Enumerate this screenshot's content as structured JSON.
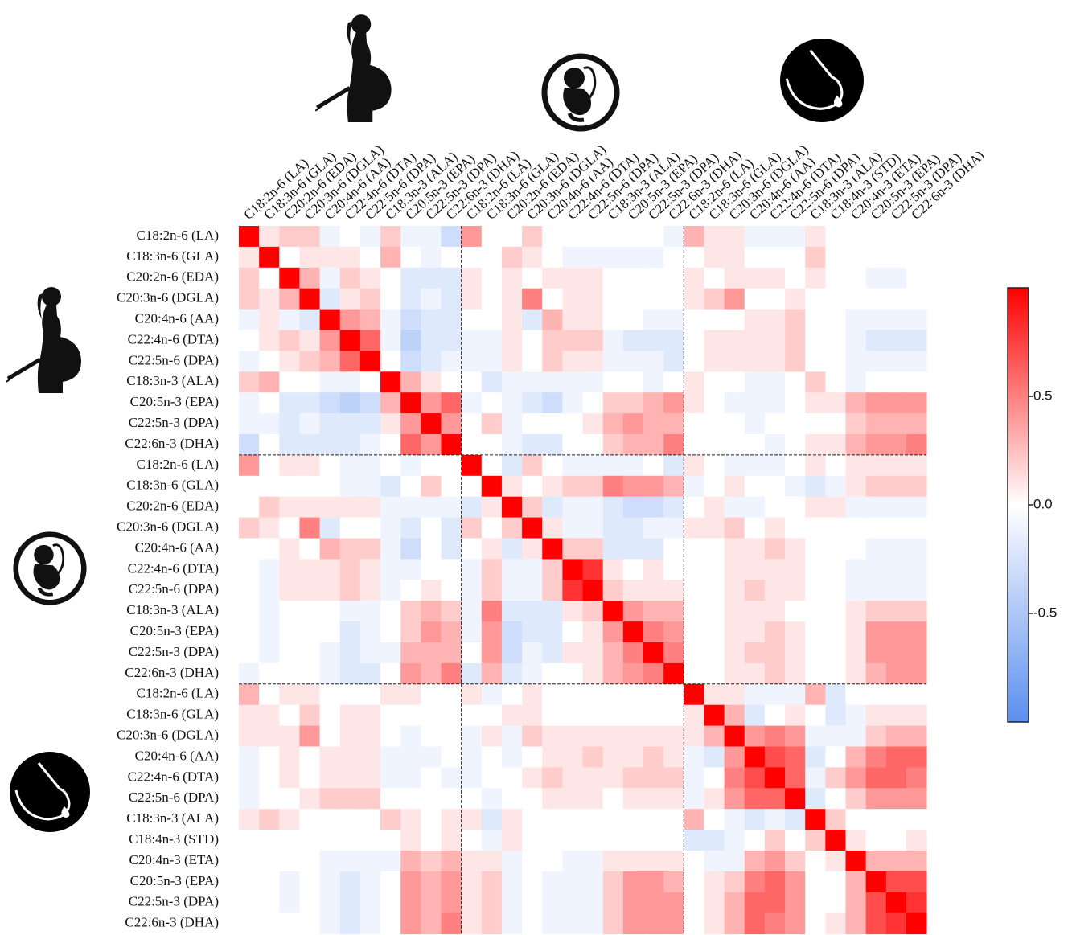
{
  "chart_data": {
    "type": "heatmap",
    "x_labels": [
      "C18:2n-6 (LA)",
      "C18:3n-6 (GLA)",
      "C20:2n-6 (EDA)",
      "C20:3n-6 (DGLA)",
      "C20:4n-6 (AA)",
      "C22:4n-6 (DTA)",
      "C22:5n-6 (DPA)",
      "C18:3n-3 (ALA)",
      "C20:5n-3 (EPA)",
      "C22:5n-3 (DPA)",
      "C22:6n-3 (DHA)",
      "C18:2n-6 (LA)",
      "C18:3n-6 (GLA)",
      "C20:2n-6 (EDA)",
      "C20:3n-6 (DGLA)",
      "C20:4n-6 (AA)",
      "C22:4n-6 (DTA)",
      "C22:5n-6 (DPA)",
      "C18:3n-3 (ALA)",
      "C20:5n-3 (EPA)",
      "C22:5n-3 (DPA)",
      "C22:6n-3 (DHA)",
      "C18:2n-6 (LA)",
      "C18:3n-6 (GLA)",
      "C20:3n-6 (DGLA)",
      "C20:4n-6 (AA)",
      "C22:4n-6 (DTA)",
      "C22:5n-6 (DPA)",
      "C18:3n-3 (ALA)",
      "C18:4n-3 (STD)",
      "C20:4n-3 (ETA)",
      "C20:5n-3 (EPA)",
      "C22:5n-3 (DPA)",
      "C22:6n-3 (DHA)"
    ],
    "y_labels": [
      "C18:2n-6 (LA)",
      "C18:3n-6 (GLA)",
      "C20:2n-6 (EDA)",
      "C20:3n-6 (DGLA)",
      "C20:4n-6 (AA)",
      "C22:4n-6 (DTA)",
      "C22:5n-6 (DPA)",
      "C18:3n-3 (ALA)",
      "C20:5n-3 (EPA)",
      "C22:5n-3 (DPA)",
      "C22:6n-3 (DHA)",
      "C18:2n-6 (LA)",
      "C18:3n-6 (GLA)",
      "C20:2n-6 (EDA)",
      "C20:3n-6 (DGLA)",
      "C20:4n-6 (AA)",
      "C22:4n-6 (DTA)",
      "C22:5n-6 (DPA)",
      "C18:3n-3 (ALA)",
      "C20:5n-3 (EPA)",
      "C22:5n-3 (DPA)",
      "C22:6n-3 (DHA)",
      "C18:2n-6 (LA)",
      "C18:3n-6 (GLA)",
      "C20:3n-6 (DGLA)",
      "C20:4n-6 (AA)",
      "C22:4n-6 (DTA)",
      "C22:5n-6 (DPA)",
      "C18:3n-3 (ALA)",
      "C18:4n-3 (STD)",
      "C20:4n-3 (ETA)",
      "C20:5n-3 (EPA)",
      "C22:5n-3 (DPA)",
      "C22:6n-3 (DHA)"
    ],
    "z": [
      [
        1,
        0.1,
        0.2,
        0.2,
        -0.1,
        0,
        -0.1,
        0.2,
        -0.1,
        -0.1,
        -0.3,
        0.4,
        0,
        0,
        0.2,
        0,
        0,
        0,
        0,
        0,
        0,
        -0.1,
        0.3,
        0.1,
        0.1,
        -0.1,
        -0.1,
        -0.1,
        0.1,
        0,
        0,
        0,
        0,
        0
      ],
      [
        0.1,
        1,
        0,
        0.1,
        0.1,
        0.1,
        0,
        0.3,
        0,
        -0.1,
        0,
        0,
        0,
        0.2,
        0.1,
        0,
        -0.1,
        -0.1,
        -0.1,
        -0.1,
        -0.1,
        0,
        0,
        0.1,
        0.1,
        0,
        0,
        0,
        0.2,
        0,
        0,
        0,
        0,
        0
      ],
      [
        0.2,
        0,
        1,
        0.3,
        -0.1,
        0.2,
        0.1,
        0,
        -0.2,
        -0.2,
        -0.2,
        0.1,
        0,
        0.1,
        0,
        0.1,
        0.1,
        0.1,
        0,
        0,
        0,
        0,
        0.1,
        0,
        0.1,
        0.1,
        0.1,
        0,
        0.1,
        0,
        0,
        -0.1,
        -0.1,
        0
      ],
      [
        0.2,
        0.1,
        0.3,
        1,
        -0.2,
        0.1,
        0.2,
        0,
        -0.2,
        -0.1,
        -0.2,
        0.1,
        0,
        0.1,
        0.5,
        0,
        0.1,
        0.1,
        0,
        0,
        0,
        0,
        0.1,
        0.2,
        0.4,
        0,
        0,
        0.1,
        0,
        0,
        0,
        0,
        0,
        0
      ],
      [
        -0.1,
        0.1,
        -0.1,
        -0.2,
        1,
        0.4,
        0.3,
        -0.1,
        -0.3,
        -0.2,
        -0.2,
        0,
        0,
        0.1,
        -0.2,
        0.3,
        0.1,
        0.1,
        0,
        0,
        -0.1,
        -0.1,
        0,
        0,
        0,
        0.1,
        0.1,
        0.2,
        0,
        0,
        -0.1,
        -0.1,
        -0.1,
        -0.1
      ],
      [
        0,
        0.1,
        0.2,
        0.1,
        0.4,
        1,
        0.6,
        -0.1,
        -0.4,
        -0.2,
        -0.2,
        -0.1,
        -0.1,
        0.1,
        0,
        0.2,
        0.2,
        0.2,
        -0.1,
        -0.2,
        -0.2,
        -0.2,
        0,
        0.1,
        0.1,
        0.1,
        0.1,
        0.2,
        0,
        0,
        -0.1,
        -0.2,
        -0.2,
        -0.2
      ],
      [
        -0.1,
        0,
        0.1,
        0.2,
        0.3,
        0.6,
        1,
        0,
        -0.3,
        -0.2,
        -0.1,
        -0.1,
        -0.1,
        0.1,
        0,
        0.2,
        0.1,
        0.1,
        -0.1,
        -0.1,
        -0.1,
        -0.2,
        0,
        0.1,
        0.1,
        0.1,
        0.1,
        0.2,
        0,
        0,
        -0.1,
        -0.1,
        -0.1,
        -0.1
      ],
      [
        0.2,
        0.3,
        0,
        0,
        -0.1,
        -0.1,
        0,
        1,
        0.3,
        0.1,
        0,
        0,
        -0.2,
        -0.1,
        -0.1,
        -0.1,
        -0.1,
        -0.1,
        0,
        0,
        -0.1,
        0,
        0.1,
        0,
        0,
        -0.1,
        -0.1,
        0,
        0.2,
        0,
        -0.1,
        0,
        0,
        0
      ],
      [
        -0.1,
        0,
        -0.2,
        -0.2,
        -0.3,
        -0.4,
        -0.3,
        0.3,
        1,
        0.4,
        0.6,
        -0.1,
        0,
        -0.1,
        -0.2,
        -0.3,
        -0.1,
        0,
        0.2,
        0.2,
        0.3,
        0.4,
        0.1,
        0,
        -0.1,
        -0.1,
        -0.1,
        0,
        0.1,
        0.1,
        0.3,
        0.4,
        0.4,
        0.4
      ],
      [
        -0.1,
        -0.1,
        -0.2,
        -0.1,
        -0.2,
        -0.2,
        -0.2,
        0.1,
        0.4,
        1,
        0.4,
        0,
        0.2,
        -0.1,
        0,
        0,
        0,
        0.1,
        0.3,
        0.4,
        0.3,
        0.3,
        0,
        0,
        0,
        -0.1,
        0,
        0,
        0,
        0,
        0.2,
        0.3,
        0.3,
        0.3
      ],
      [
        -0.3,
        0,
        -0.2,
        -0.2,
        -0.2,
        -0.2,
        -0.1,
        0,
        0.6,
        0.4,
        1,
        0,
        0,
        -0.1,
        -0.2,
        -0.2,
        0,
        0,
        0.2,
        0.3,
        0.3,
        0.5,
        0,
        0,
        0,
        0,
        -0.1,
        0,
        0.1,
        0.1,
        0.3,
        0.4,
        0.4,
        0.5
      ],
      [
        0.4,
        0,
        0.1,
        0.1,
        0,
        -0.1,
        -0.1,
        0,
        -0.1,
        0,
        0,
        1,
        0,
        -0.2,
        0.2,
        0,
        -0.1,
        -0.1,
        -0.1,
        -0.1,
        0,
        -0.2,
        0.1,
        0,
        -0.1,
        -0.1,
        -0.1,
        0,
        0.1,
        0,
        0.1,
        0.1,
        0.1,
        0.1
      ],
      [
        0,
        0,
        0,
        0,
        0,
        -0.1,
        -0.1,
        -0.2,
        0,
        0.2,
        0,
        0,
        1,
        0.1,
        0,
        0.1,
        0.2,
        0.2,
        0.5,
        0.4,
        0.4,
        0.3,
        -0.1,
        0,
        0.1,
        0,
        0,
        -0.1,
        -0.2,
        -0.1,
        0.1,
        0.2,
        0.2,
        0.2
      ],
      [
        0,
        0.2,
        0.1,
        0.1,
        0.1,
        0.1,
        0.1,
        -0.1,
        -0.1,
        -0.1,
        -0.1,
        -0.2,
        0.1,
        1,
        0.2,
        -0.2,
        -0.1,
        -0.1,
        -0.2,
        -0.3,
        -0.3,
        -0.2,
        0,
        0.1,
        -0.1,
        -0.1,
        0,
        0,
        0.1,
        0.1,
        -0.1,
        -0.1,
        -0.1,
        -0.1
      ],
      [
        0.2,
        0.1,
        0,
        0.5,
        -0.2,
        0,
        0,
        -0.1,
        -0.2,
        0,
        -0.2,
        0.2,
        0,
        0.2,
        1,
        0.1,
        -0.1,
        -0.1,
        -0.2,
        -0.2,
        -0.1,
        -0.1,
        0.1,
        0.1,
        0.2,
        0,
        0.1,
        0,
        0,
        0,
        0,
        0,
        0,
        0
      ],
      [
        0,
        0,
        0.1,
        0,
        0.3,
        0.2,
        0.2,
        -0.1,
        -0.3,
        0,
        -0.2,
        0,
        0.1,
        -0.2,
        0.1,
        1,
        0.2,
        0.2,
        -0.2,
        -0.2,
        -0.2,
        0,
        0,
        0,
        0.1,
        0.1,
        0.2,
        0.1,
        0,
        0,
        0,
        -0.1,
        -0.1,
        -0.1
      ],
      [
        0,
        -0.1,
        0.1,
        0.1,
        0.1,
        0.2,
        0.1,
        -0.1,
        -0.1,
        0,
        0,
        -0.1,
        0.2,
        -0.1,
        -0.1,
        0.2,
        1,
        0.8,
        0.1,
        0,
        0.1,
        0,
        0,
        0,
        0.1,
        0.1,
        0.1,
        0.1,
        0,
        0,
        -0.1,
        -0.1,
        -0.1,
        -0.1
      ],
      [
        0,
        -0.1,
        0.1,
        0.1,
        0.1,
        0.2,
        0.1,
        -0.1,
        0,
        0.1,
        0,
        -0.1,
        0.2,
        -0.1,
        -0.1,
        0.2,
        0.8,
        1,
        0.2,
        0.1,
        0.1,
        0.1,
        0,
        0,
        0.1,
        0.2,
        0.1,
        0.1,
        0,
        0,
        -0.1,
        -0.1,
        -0.1,
        -0.1
      ],
      [
        0,
        -0.1,
        0,
        0,
        0,
        -0.1,
        -0.1,
        0,
        0.2,
        0.3,
        0.2,
        -0.1,
        0.5,
        -0.2,
        -0.2,
        -0.2,
        0.1,
        0.2,
        1,
        0.4,
        0.3,
        0.3,
        0,
        0,
        0.1,
        0.1,
        0.1,
        0,
        0,
        0,
        0.1,
        0.2,
        0.2,
        0.2
      ],
      [
        0,
        -0.1,
        0,
        0,
        0,
        -0.2,
        -0.1,
        0,
        0.2,
        0.4,
        0.3,
        -0.1,
        0.4,
        -0.3,
        -0.2,
        -0.2,
        0,
        0.1,
        0.4,
        1,
        0.5,
        0.4,
        0,
        0,
        0.1,
        0.1,
        0.2,
        0.1,
        0,
        0,
        0.1,
        0.4,
        0.4,
        0.4
      ],
      [
        0,
        -0.1,
        0,
        0,
        -0.1,
        -0.2,
        -0.1,
        -0.1,
        0.3,
        0.3,
        0.3,
        0,
        0.4,
        -0.3,
        -0.1,
        -0.2,
        0.1,
        0.1,
        0.3,
        0.5,
        1,
        0.5,
        0,
        0,
        0.1,
        0.2,
        0.2,
        0.1,
        0,
        0,
        0.1,
        0.4,
        0.4,
        0.4
      ],
      [
        -0.1,
        0,
        0,
        0,
        -0.1,
        -0.2,
        -0.2,
        0,
        0.4,
        0.3,
        0.5,
        -0.2,
        0.3,
        -0.2,
        -0.1,
        0,
        0,
        0.1,
        0.3,
        0.4,
        0.5,
        1,
        0,
        0,
        0.1,
        0.1,
        0.2,
        0.1,
        0,
        0,
        0.1,
        0.3,
        0.4,
        0.4
      ],
      [
        0.3,
        0,
        0.1,
        0.1,
        0,
        0,
        0,
        0.1,
        0.1,
        0,
        0,
        0.1,
        -0.1,
        0,
        0.1,
        0,
        0,
        0,
        0,
        0,
        0,
        0,
        1,
        0.1,
        0.1,
        -0.1,
        -0.1,
        -0.1,
        0.3,
        -0.2,
        0,
        0,
        0,
        0
      ],
      [
        0.1,
        0.1,
        0,
        0.2,
        0,
        0.1,
        0.1,
        0,
        0,
        0,
        0,
        0,
        0,
        0.1,
        0.1,
        0,
        0,
        0,
        0,
        0,
        0,
        0,
        0.1,
        1,
        0.3,
        -0.2,
        0,
        0.1,
        0,
        -0.2,
        -0.1,
        0.1,
        0.1,
        0.1
      ],
      [
        0.1,
        0.1,
        0.1,
        0.4,
        0,
        0.1,
        0.1,
        0,
        -0.1,
        0,
        0,
        -0.1,
        0.1,
        -0.1,
        0.2,
        0.1,
        0.1,
        0.1,
        0.1,
        0.1,
        0.1,
        0.1,
        0.1,
        0.3,
        1,
        0.4,
        0.5,
        0.4,
        -0.1,
        -0.1,
        -0.1,
        0.2,
        0.3,
        0.3
      ],
      [
        -0.1,
        0,
        0.1,
        0,
        0.1,
        0.1,
        0.1,
        -0.1,
        -0.1,
        -0.1,
        0,
        -0.1,
        0,
        -0.1,
        0,
        0.1,
        0.1,
        0.2,
        0.1,
        0.1,
        0.2,
        0.1,
        -0.1,
        -0.2,
        0.4,
        1,
        0.7,
        0.6,
        -0.2,
        0,
        0.3,
        0.5,
        0.6,
        0.6
      ],
      [
        -0.1,
        0,
        0.1,
        0,
        0.1,
        0.1,
        0.1,
        -0.1,
        -0.1,
        0,
        -0.1,
        -0.1,
        0,
        0,
        0.1,
        0.2,
        0.1,
        0.1,
        0.1,
        0.2,
        0.2,
        0.2,
        -0.1,
        0,
        0.5,
        0.7,
        1,
        0.6,
        -0.1,
        0.2,
        0.4,
        0.6,
        0.6,
        0.5
      ],
      [
        -0.1,
        0,
        0,
        0.1,
        0.2,
        0.2,
        0.2,
        0,
        0,
        0,
        0,
        0,
        -0.1,
        0,
        0,
        0.1,
        0.1,
        0.1,
        0,
        0.1,
        0.1,
        0.1,
        -0.1,
        0.1,
        0.4,
        0.6,
        0.6,
        1,
        -0.2,
        0,
        0.2,
        0.4,
        0.4,
        0.4
      ],
      [
        0.1,
        0.2,
        0.1,
        0,
        0,
        0,
        0,
        0.2,
        0.1,
        0,
        0.1,
        0.1,
        -0.2,
        0.1,
        0,
        0,
        0,
        0,
        0,
        0,
        0,
        0,
        0.3,
        0,
        -0.1,
        -0.2,
        -0.1,
        -0.2,
        1,
        0.2,
        0,
        0,
        0,
        0
      ],
      [
        0,
        0,
        0,
        0,
        0,
        0,
        0,
        0,
        0.1,
        0,
        0.1,
        0,
        -0.1,
        0.1,
        0,
        0,
        0,
        0,
        0,
        0,
        0,
        0,
        -0.2,
        -0.2,
        -0.1,
        0,
        0.2,
        0,
        0.2,
        1,
        0.1,
        0,
        0,
        0.1
      ],
      [
        0,
        0,
        0,
        0,
        -0.1,
        -0.1,
        -0.1,
        -0.1,
        0.3,
        0.2,
        0.3,
        0.1,
        0.1,
        -0.1,
        0,
        0,
        -0.1,
        -0.1,
        0.1,
        0.1,
        0.1,
        0.1,
        0,
        -0.1,
        -0.1,
        0.3,
        0.4,
        0.2,
        0,
        0.1,
        1,
        0.3,
        0.3,
        0.3
      ],
      [
        0,
        0,
        -0.1,
        0,
        -0.1,
        -0.2,
        -0.1,
        0,
        0.4,
        0.3,
        0.4,
        0.1,
        0.2,
        -0.1,
        0,
        -0.1,
        -0.1,
        -0.1,
        0.2,
        0.4,
        0.4,
        0.3,
        0,
        0.1,
        0.2,
        0.5,
        0.6,
        0.4,
        0,
        0,
        0.3,
        1,
        0.7,
        0.7
      ],
      [
        0,
        0,
        -0.1,
        0,
        -0.1,
        -0.2,
        -0.1,
        0,
        0.4,
        0.3,
        0.4,
        0.1,
        0.2,
        -0.1,
        0,
        -0.1,
        -0.1,
        -0.1,
        0.2,
        0.4,
        0.4,
        0.4,
        0,
        0.1,
        0.3,
        0.6,
        0.6,
        0.4,
        0,
        0,
        0.3,
        0.7,
        1,
        0.8
      ],
      [
        0,
        0,
        0,
        0,
        -0.1,
        -0.2,
        -0.1,
        0,
        0.4,
        0.3,
        0.5,
        0.1,
        0.2,
        -0.1,
        0,
        -0.1,
        -0.1,
        -0.1,
        0.2,
        0.4,
        0.4,
        0.4,
        0,
        0.1,
        0.3,
        0.6,
        0.5,
        0.4,
        0,
        0.1,
        0.3,
        0.7,
        0.8,
        1
      ]
    ],
    "zlim": [
      -1,
      1
    ],
    "zticks": [
      0.5,
      {
        "value": 0,
        "label": "0.0"
      },
      -0.5
    ],
    "colormap": [
      "#5b8ff0",
      "#ffffff",
      "#ff0000"
    ]
  }
}
